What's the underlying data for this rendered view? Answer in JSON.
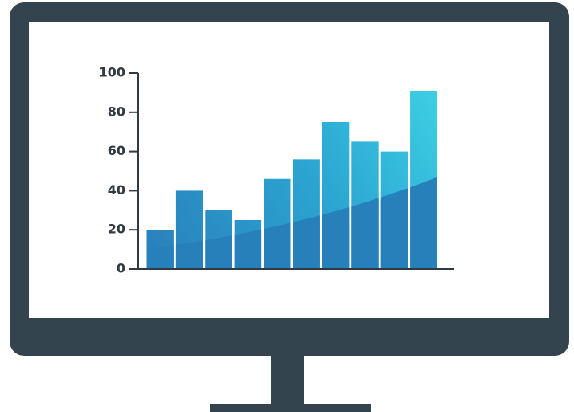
{
  "chart_data": {
    "type": "bar",
    "categories": [
      null,
      null,
      null,
      null,
      null,
      null,
      null,
      null,
      null,
      null
    ],
    "values": [
      20,
      40,
      30,
      25,
      46,
      56,
      75,
      65,
      60,
      91
    ],
    "color": "#2a8cc4",
    "ylim": [
      0,
      100
    ],
    "yticks": [
      0,
      20,
      40,
      60,
      80,
      100
    ],
    "grid": false
  }
}
